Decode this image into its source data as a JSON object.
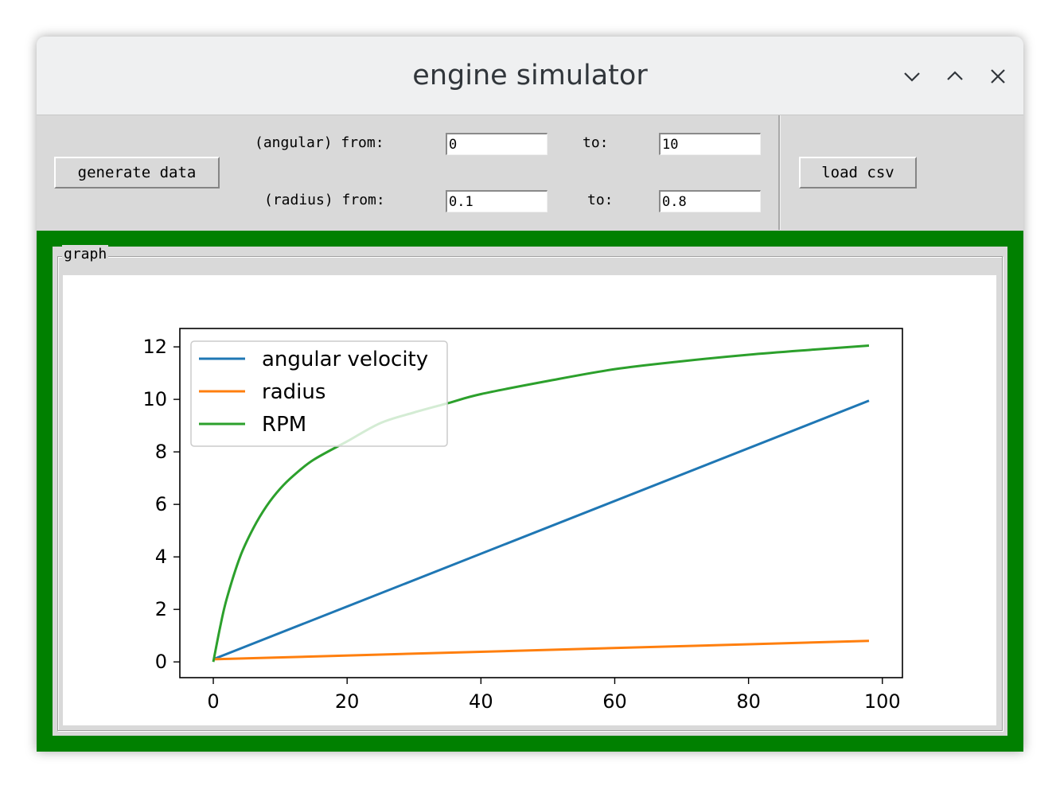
{
  "window": {
    "title": "engine simulator",
    "controls": [
      "minimize-icon",
      "maximize-icon",
      "close-icon"
    ]
  },
  "toolbar": {
    "generate_label": "generate data",
    "load_label": "load csv",
    "angular_from_label": "(angular) from:",
    "angular_to_label": "to:",
    "radius_from_label": "(radius) from:",
    "radius_to_label": "to:",
    "angular_from_value": "0",
    "angular_to_value": "10",
    "radius_from_value": "0.1",
    "radius_to_value": "0.8"
  },
  "graph_frame": {
    "title": "graph",
    "frame_color": "#008000"
  },
  "chart_data": {
    "type": "line",
    "xlim": [
      -5,
      103
    ],
    "ylim": [
      -0.6,
      12.7
    ],
    "x_ticks": [
      0,
      20,
      40,
      60,
      80,
      100
    ],
    "y_ticks": [
      0,
      2,
      4,
      6,
      8,
      10,
      12
    ],
    "legend_position": "upper-left",
    "grid": false,
    "series": [
      {
        "name": "angular velocity",
        "color": "#1f77b4",
        "x": [
          0,
          98
        ],
        "y": [
          0.1,
          9.95
        ]
      },
      {
        "name": "radius",
        "color": "#ff7f0e",
        "x": [
          0,
          98
        ],
        "y": [
          0.1,
          0.8
        ]
      },
      {
        "name": "RPM",
        "color": "#2ca02c",
        "x": [
          0,
          1,
          2,
          4,
          6,
          8,
          10,
          12,
          15,
          20,
          25,
          30,
          35,
          40,
          50,
          60,
          70,
          80,
          90,
          98
        ],
        "y": [
          0.0,
          1.3,
          2.4,
          4.0,
          5.1,
          5.95,
          6.6,
          7.1,
          7.7,
          8.4,
          9.1,
          9.5,
          9.85,
          10.2,
          10.7,
          11.15,
          11.45,
          11.7,
          11.9,
          12.05
        ]
      }
    ]
  }
}
